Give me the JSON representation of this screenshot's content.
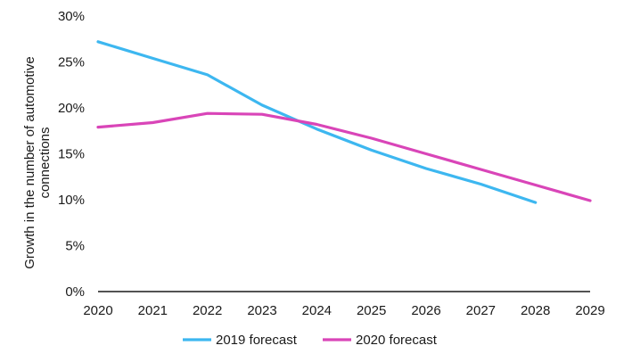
{
  "chart_data": {
    "type": "line",
    "x": [
      2020,
      2021,
      2022,
      2023,
      2024,
      2025,
      2026,
      2027,
      2028,
      2029
    ],
    "x_tick_labels": [
      "2020",
      "2021",
      "2022",
      "2023",
      "2024",
      "2025",
      "2026",
      "2027",
      "2028",
      "2029"
    ],
    "y_tick_values": [
      0,
      5,
      10,
      15,
      20,
      25,
      30
    ],
    "y_tick_labels": [
      "0%",
      "5%",
      "10%",
      "15%",
      "20%",
      "25%",
      "30%"
    ],
    "ylabel_lines": [
      "Growth in the number of automotive",
      "connections"
    ],
    "ylim": [
      0,
      30
    ],
    "grid": false,
    "legend_position": "bottom",
    "series": [
      {
        "name": "2019 forecast",
        "color": "#3db7f0",
        "x": [
          2020,
          2021,
          2022,
          2023,
          2024,
          2025,
          2026,
          2027,
          2028
        ],
        "values": [
          27.2,
          25.4,
          23.6,
          20.3,
          17.7,
          15.4,
          13.4,
          11.7,
          9.7
        ]
      },
      {
        "name": "2020 forecast",
        "color": "#d945b8",
        "x": [
          2020,
          2021,
          2022,
          2023,
          2024,
          2025,
          2026,
          2027,
          2028,
          2029
        ],
        "values": [
          17.9,
          18.4,
          19.4,
          19.3,
          18.2,
          16.7,
          15.0,
          13.3,
          11.6,
          9.9
        ]
      }
    ]
  }
}
